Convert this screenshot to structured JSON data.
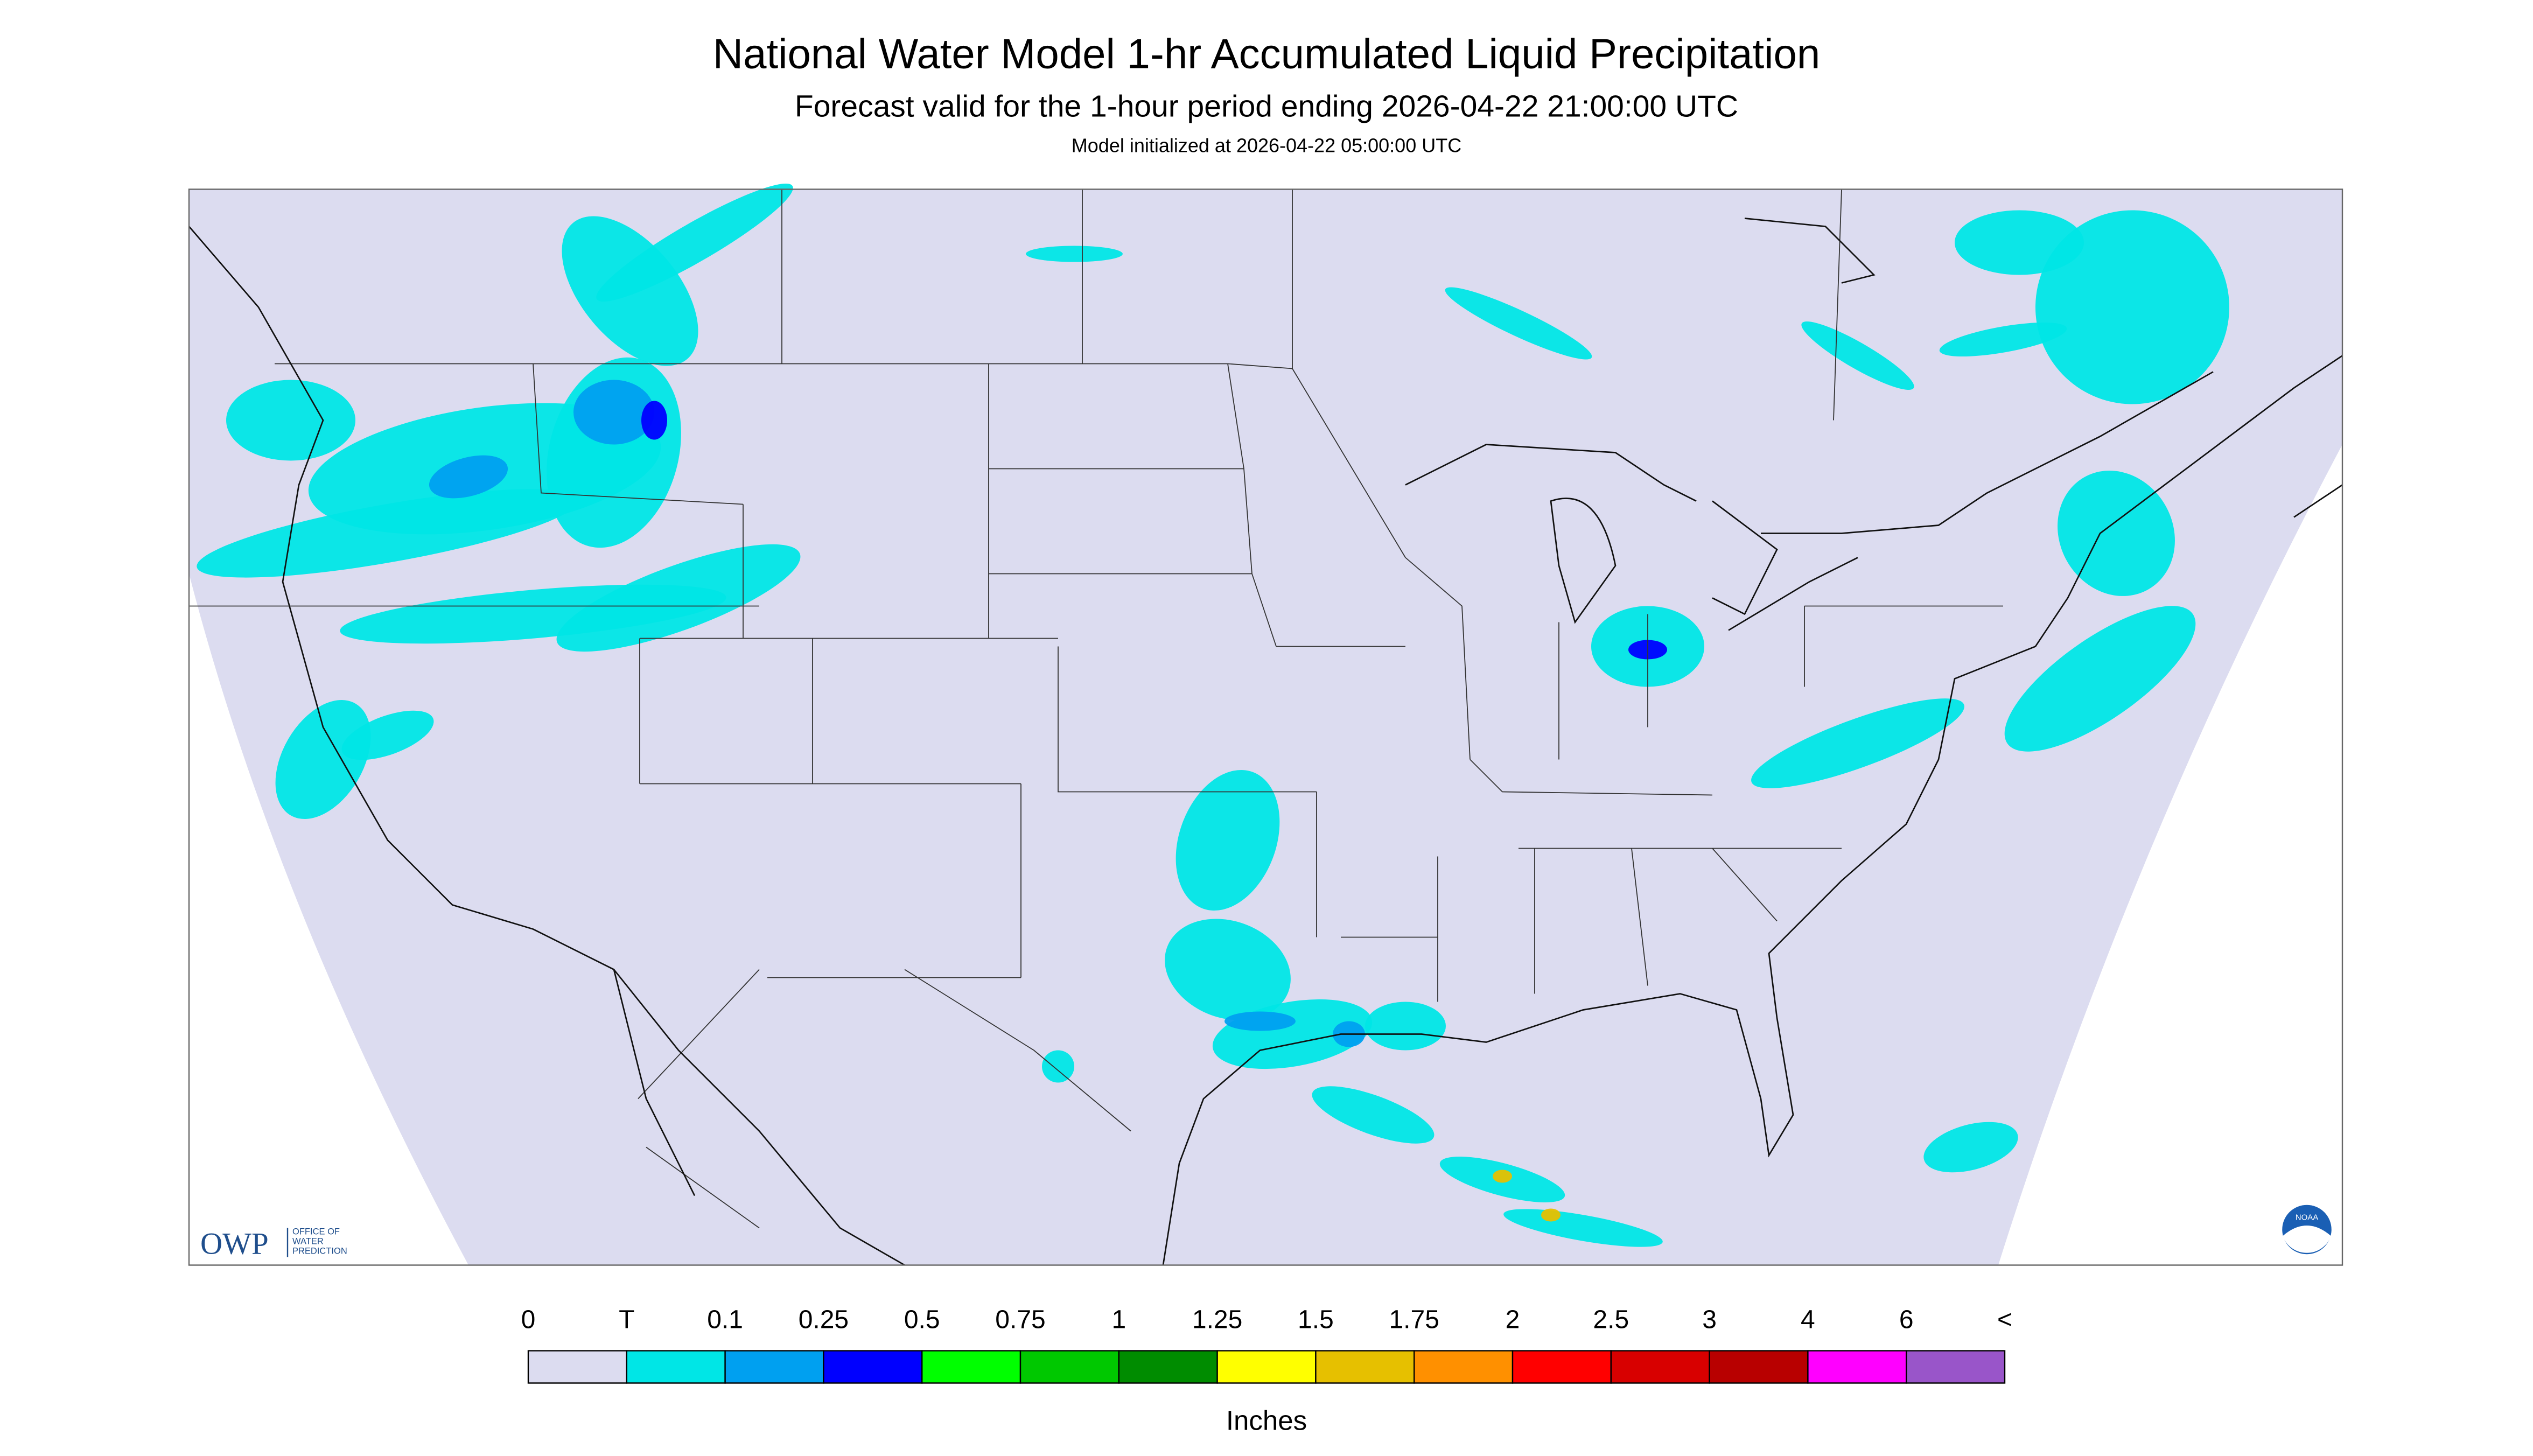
{
  "header": {
    "title": "National Water Model 1-hr Accumulated Liquid Precipitation",
    "subtitle": "Forecast valid for the 1-hour period ending 2026-04-22 21:00:00 UTC",
    "init": "Model initialized at 2026-04-22 05:00:00 UTC"
  },
  "logos": {
    "owp": "OWP",
    "owp_lines": [
      "OFFICE OF",
      "WATER",
      "PREDICTION"
    ],
    "noaa": "NOAA"
  },
  "legend": {
    "labels": [
      "0",
      "T",
      "0.1",
      "0.25",
      "0.5",
      "0.75",
      "1",
      "1.25",
      "1.5",
      "1.75",
      "2",
      "2.5",
      "3",
      "4",
      "6",
      "<"
    ],
    "colors": [
      "#dcdcf0",
      "#00e6e6",
      "#00a0f0",
      "#0000ff",
      "#00ff00",
      "#00c800",
      "#008c00",
      "#ffff00",
      "#e6c000",
      "#ff9000",
      "#ff0000",
      "#d80000",
      "#b80000",
      "#ff00ff",
      "#9955c9"
    ],
    "unit": "Inches"
  }
}
